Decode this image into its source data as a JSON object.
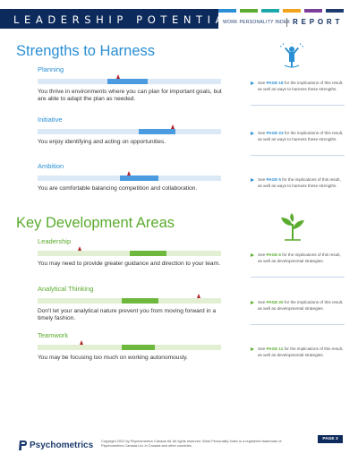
{
  "header": {
    "title": "LEADERSHIP POTENTIAL",
    "subtitle": "WORK PERSONALITY INDEX",
    "report": "REPORT",
    "colors": [
      "#2a8fd4",
      "#5aab2e",
      "#1aa8a8",
      "#f3a21b",
      "#7c3f99",
      "#1d3b6c"
    ]
  },
  "strengths": {
    "title": "Strengths to Harness",
    "icon": "person-celebrating-icon",
    "items": [
      {
        "label": "Planning",
        "score": 0.44,
        "band": [
          0.38,
          0.6
        ],
        "description": "You thrive in environments where you can plan for important goals, but are able to adapt the plan as needed.",
        "note_prefix": "See",
        "note_page": "PAGE 18",
        "note_suffix": "for the implications of this result, as well as ways to harness these strengths."
      },
      {
        "label": "Initiative",
        "score": 0.74,
        "band": [
          0.55,
          0.75
        ],
        "description": "You enjoy identifying and acting on opportunities.",
        "note_prefix": "See",
        "note_page": "PAGE 23",
        "note_suffix": "for the implications of this result, as well as ways to harness these strengths."
      },
      {
        "label": "Ambition",
        "score": 0.5,
        "band": [
          0.45,
          0.66
        ],
        "description": "You are comfortable balancing competition and collaboration.",
        "note_prefix": "See",
        "note_page": "PAGE 5",
        "note_suffix": "for the implications of this result, as well as ways to harness these strengths."
      }
    ]
  },
  "development": {
    "title": "Key Development Areas",
    "icon": "seedling-plant-icon",
    "items": [
      {
        "label": "Leadership",
        "score": 0.23,
        "band": [
          0.5,
          0.7
        ],
        "description": "You may need to provide greater guidance and direction to your team.",
        "note_prefix": "See",
        "note_page": "PAGE 6",
        "note_suffix": "for the implications of this result, as well as developmental strategies."
      },
      {
        "label": "Analytical Thinking",
        "score": 0.88,
        "band": [
          0.46,
          0.66
        ],
        "description": "Don't let your analytical nature prevent you from moving forward in a timely fashion.",
        "note_prefix": "See",
        "note_page": "PAGE 20",
        "note_suffix": "for the implications of this result, as well as developmental strategies."
      },
      {
        "label": "Teamwork",
        "score": 0.24,
        "band": [
          0.46,
          0.64
        ],
        "description": "You may be focusing too much on working autonomously.",
        "note_prefix": "See",
        "note_page": "PAGE 11",
        "note_suffix": "for the implications of this result, as well as developmental strategies."
      }
    ]
  },
  "footer": {
    "logo": "Psychometrics",
    "copyright": "Copyright 2022 by Psychometrics Canada ltd. All rights reserved. Work Personality Index is a registered trademark of Psychometrics Canada Ltd. in Canada and other countries.",
    "page": "PAGE 3"
  }
}
